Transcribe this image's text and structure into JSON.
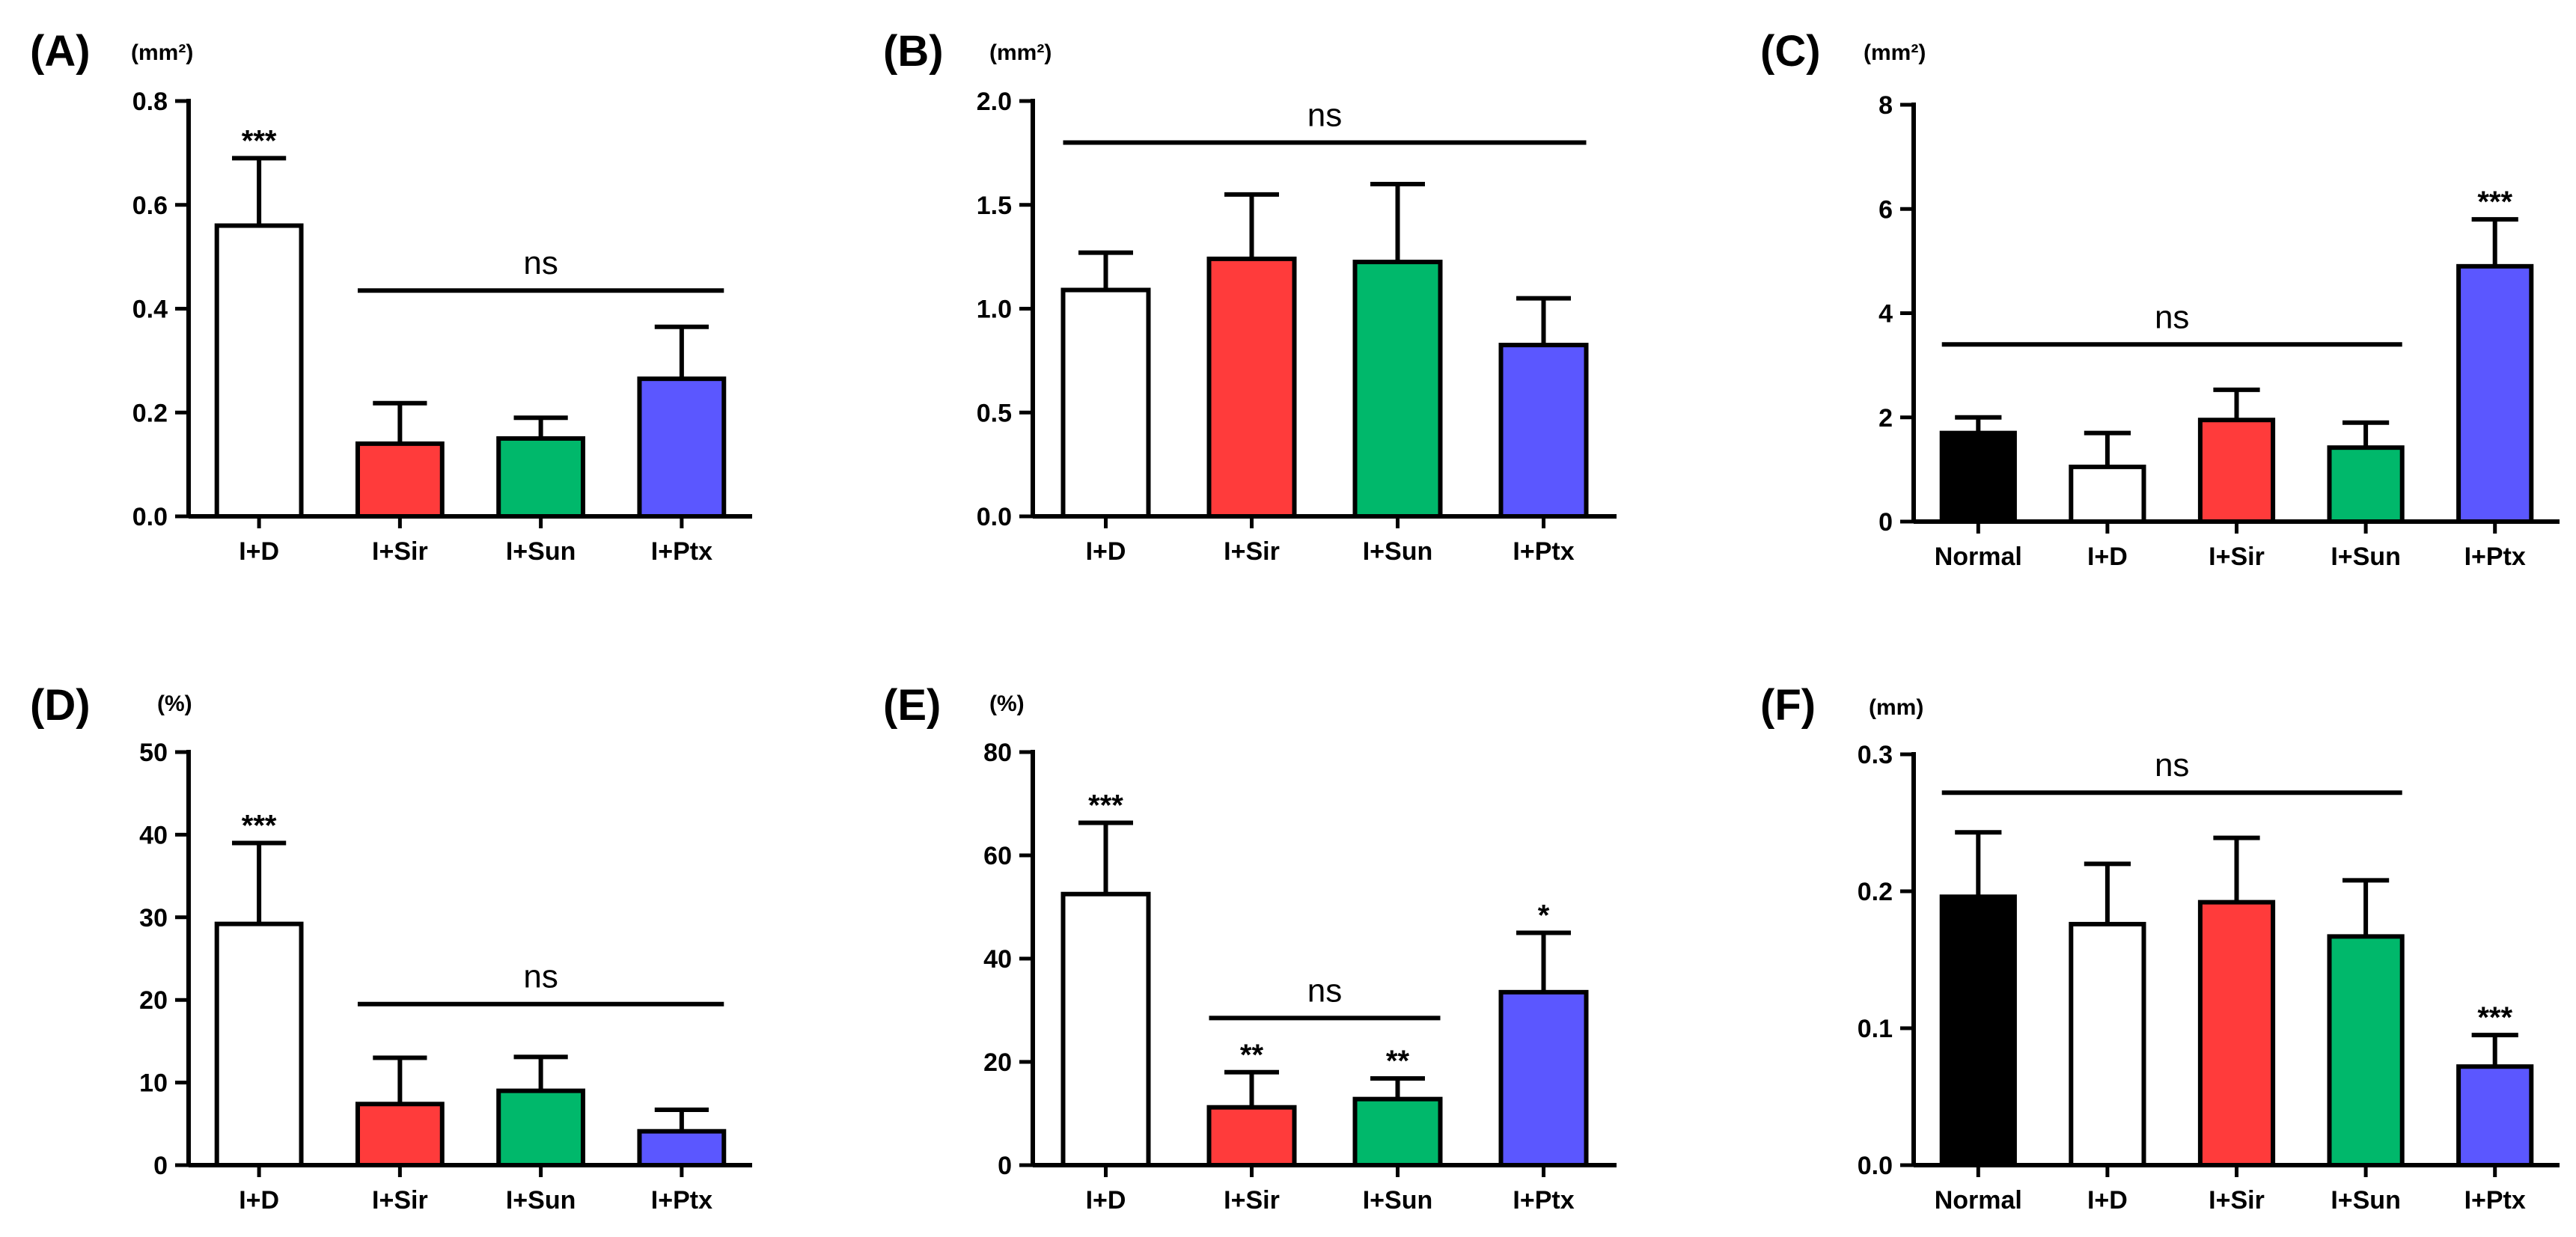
{
  "figure": {
    "colors": {
      "Normal": "#000000",
      "I+D": "#ffffff",
      "I+Sir": "#ff3b3b",
      "I+Sun": "#00b86b",
      "I+Ptx": "#5b57ff",
      "stroke": "#000000"
    }
  },
  "chart_data": [
    {
      "panel_label": "(A)",
      "unit": "(mm²)",
      "type": "bar",
      "categories": [
        "I+D",
        "I+Sir",
        "I+Sun",
        "I+Ptx"
      ],
      "values": [
        0.56,
        0.14,
        0.15,
        0.265
      ],
      "errors": [
        0.13,
        0.078,
        0.04,
        0.1
      ],
      "ylim": [
        0,
        0.8
      ],
      "yticks": [
        0.0,
        0.2,
        0.4,
        0.6,
        0.8
      ],
      "ytick_labels": [
        "0.0",
        "0.2",
        "0.4",
        "0.6",
        "0.8"
      ],
      "annotations": [
        {
          "category_index": 0,
          "text": "***"
        }
      ],
      "ns": {
        "from": 1,
        "to": 3,
        "y": 0.435,
        "text": "ns"
      }
    },
    {
      "panel_label": "(B)",
      "unit": "(mm²)",
      "type": "bar",
      "categories": [
        "I+D",
        "I+Sir",
        "I+Sun",
        "I+Ptx"
      ],
      "values": [
        1.09,
        1.24,
        1.225,
        0.825
      ],
      "errors": [
        0.18,
        0.31,
        0.375,
        0.225
      ],
      "ylim": [
        0,
        2.0
      ],
      "yticks": [
        0.0,
        0.5,
        1.0,
        1.5,
        2.0
      ],
      "ytick_labels": [
        "0.0",
        "0.5",
        "1.0",
        "1.5",
        "2.0"
      ],
      "annotations": [],
      "ns": {
        "from": 0,
        "to": 3,
        "y": 1.8,
        "text": "ns"
      }
    },
    {
      "panel_label": "(C)",
      "unit": "(mm²)",
      "type": "bar",
      "categories": [
        "Normal",
        "I+D",
        "I+Sir",
        "I+Sun",
        "I+Ptx"
      ],
      "values": [
        1.7,
        1.05,
        1.95,
        1.42,
        4.9
      ],
      "errors": [
        0.3,
        0.65,
        0.58,
        0.48,
        0.9
      ],
      "ylim": [
        0,
        8
      ],
      "yticks": [
        0,
        2,
        4,
        6,
        8
      ],
      "ytick_labels": [
        "0",
        "2",
        "4",
        "6",
        "8"
      ],
      "annotations": [
        {
          "category_index": 4,
          "text": "***"
        }
      ],
      "ns": {
        "from": 0,
        "to": 3,
        "y": 3.4,
        "text": "ns"
      }
    },
    {
      "panel_label": "(D)",
      "unit": "(%)",
      "type": "bar",
      "categories": [
        "I+D",
        "I+Sir",
        "I+Sun",
        "I+Ptx"
      ],
      "values": [
        29.2,
        7.4,
        9.0,
        4.1
      ],
      "errors": [
        9.8,
        5.6,
        4.1,
        2.6
      ],
      "ylim": [
        0,
        50
      ],
      "yticks": [
        0,
        10,
        20,
        30,
        40,
        50
      ],
      "ytick_labels": [
        "0",
        "10",
        "20",
        "30",
        "40",
        "50"
      ],
      "annotations": [
        {
          "category_index": 0,
          "text": "***"
        }
      ],
      "ns": {
        "from": 1,
        "to": 3,
        "y": 19.5,
        "text": "ns"
      }
    },
    {
      "panel_label": "(E)",
      "unit": "(%)",
      "type": "bar",
      "categories": [
        "I+D",
        "I+Sir",
        "I+Sun",
        "I+Ptx"
      ],
      "values": [
        52.5,
        11.2,
        12.8,
        33.5
      ],
      "errors": [
        13.8,
        6.8,
        4.0,
        11.5
      ],
      "ylim": [
        0,
        80
      ],
      "yticks": [
        0,
        20,
        40,
        60,
        80
      ],
      "ytick_labels": [
        "0",
        "20",
        "40",
        "60",
        "80"
      ],
      "annotations": [
        {
          "category_index": 0,
          "text": "***"
        },
        {
          "category_index": 1,
          "text": "**"
        },
        {
          "category_index": 2,
          "text": "**"
        },
        {
          "category_index": 3,
          "text": "*"
        }
      ],
      "ns": {
        "from": 1,
        "to": 2,
        "y": 28.5,
        "text": "ns"
      }
    },
    {
      "panel_label": "(F)",
      "unit": "(mm)",
      "type": "bar",
      "categories": [
        "Normal",
        "I+D",
        "I+Sir",
        "I+Sun",
        "I+Ptx"
      ],
      "values": [
        0.196,
        0.176,
        0.192,
        0.167,
        0.072
      ],
      "errors": [
        0.047,
        0.044,
        0.047,
        0.041,
        0.023
      ],
      "ylim": [
        0,
        0.3
      ],
      "yticks": [
        0.0,
        0.1,
        0.2,
        0.3
      ],
      "ytick_labels": [
        "0.0",
        "0.1",
        "0.2",
        "0.3"
      ],
      "annotations": [
        {
          "category_index": 4,
          "text": "***"
        }
      ],
      "ns": {
        "from": 0,
        "to": 3,
        "y": 0.272,
        "text": "ns"
      }
    }
  ]
}
